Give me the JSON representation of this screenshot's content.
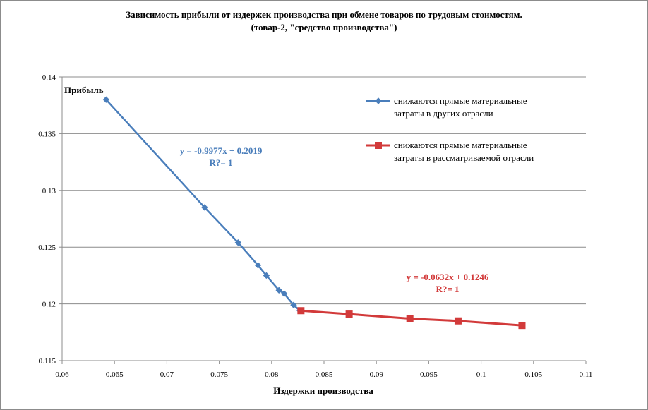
{
  "chart_data": {
    "type": "scatter",
    "title": "Зависимость прибыли от издержек производства при обмене товаров по трудовым стоимостям.",
    "subtitle": "(товар-2, \"средство производства\")",
    "xlabel": "Издержки производства",
    "ylabel": "Прибыль",
    "xlim": [
      0.06,
      0.11
    ],
    "ylim": [
      0.115,
      0.14
    ],
    "x_ticks": [
      "0.06",
      "0.065",
      "0.07",
      "0.075",
      "0.08",
      "0.085",
      "0.09",
      "0.095",
      "0.1",
      "0.105",
      "0.11"
    ],
    "y_ticks": [
      "0.115",
      "0.12",
      "0.125",
      "0.13",
      "0.135",
      "0.14"
    ],
    "grid": "horizontal",
    "legend_position": "top-right",
    "series": [
      {
        "name_lines": [
          "снижаются прямые материальные",
          "затраты в других отрасли"
        ],
        "color": "#4a7ebb",
        "marker": "diamond",
        "x": [
          0.0642,
          0.0736,
          0.0768,
          0.0787,
          0.0795,
          0.0807,
          0.0812,
          0.0821,
          0.0827
        ],
        "y": [
          0.138,
          0.1285,
          0.1254,
          0.1234,
          0.1225,
          0.1212,
          0.1209,
          0.1199,
          0.1194
        ]
      },
      {
        "name_lines": [
          "снижаются прямые материальные",
          "затраты в рассматриваемой отрасли"
        ],
        "color": "#d23a3a",
        "marker": "square",
        "x": [
          0.0828,
          0.0874,
          0.0932,
          0.0978,
          0.1039
        ],
        "y": [
          0.1194,
          0.1191,
          0.1187,
          0.1185,
          0.1181
        ]
      }
    ],
    "annotations": [
      {
        "lines": [
          "y = -0.9977x + 0.2019",
          "R?= 1"
        ],
        "color": "#4a7ebb"
      },
      {
        "lines": [
          "y = -0.0632x + 0.1246",
          "R?= 1"
        ],
        "color": "#d23a3a"
      }
    ]
  }
}
